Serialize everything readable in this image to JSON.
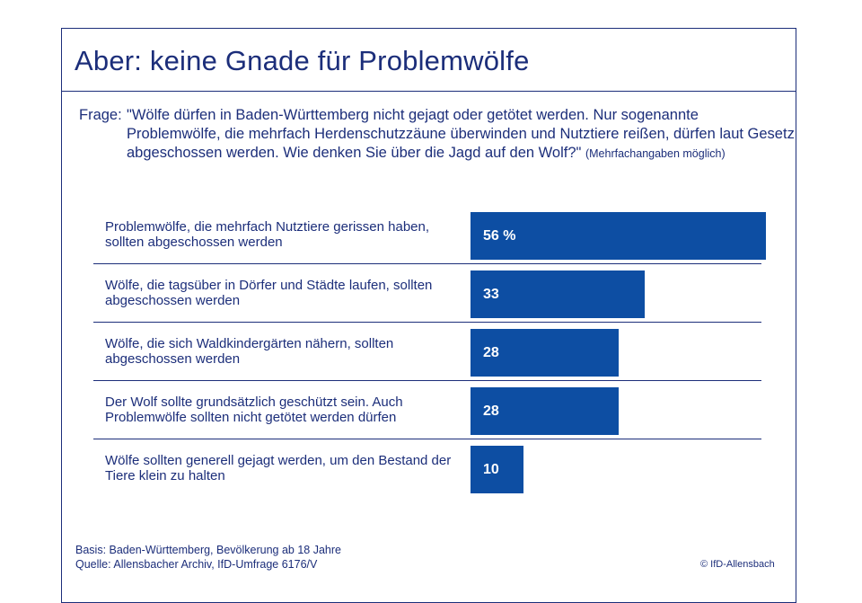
{
  "title": "Aber: keine Gnade für Problemwölfe",
  "question": {
    "prefix": "Frage:",
    "text": "\"Wölfe dürfen in Baden-Württemberg nicht gejagt oder getötet werden. Nur sogenannte Problemwölfe, die mehrfach Herdenschutzzäune überwinden und Nutztiere reißen, dürfen laut Gesetz abgeschossen werden. Wie denken Sie über die Jagd auf den Wolf?\"",
    "note": "(Mehrfachangaben möglich)"
  },
  "chart_data": {
    "type": "bar",
    "orientation": "horizontal",
    "unit": "%",
    "xlim": [
      0,
      60
    ],
    "grid": false,
    "categories": [
      "Problemwölfe, die mehrfach Nutztiere gerissen haben, sollten abgeschossen werden",
      "Wölfe, die tagsüber in Dörfer und Städte laufen, sollten abgeschossen werden",
      "Wölfe, die sich Waldkindergärten nähern, sollten abgeschossen werden",
      "Der Wolf sollte grundsätzlich geschützt sein. Auch Problemwölfe sollten nicht getötet werden dürfen",
      "Wölfe sollten generell gejagt werden, um den Bestand der Tiere klein zu halten"
    ],
    "values": [
      56,
      33,
      28,
      28,
      10
    ],
    "value_labels": [
      "56 %",
      "33",
      "28",
      "28",
      "10"
    ],
    "bar_color": "#0d4ea3"
  },
  "footer": {
    "basis": "Basis: Baden-Württemberg, Bevölkerung ab 18 Jahre",
    "source": "Quelle: Allensbacher Archiv, IfD-Umfrage 6176/V",
    "copyright": "© IfD-Allensbach"
  }
}
